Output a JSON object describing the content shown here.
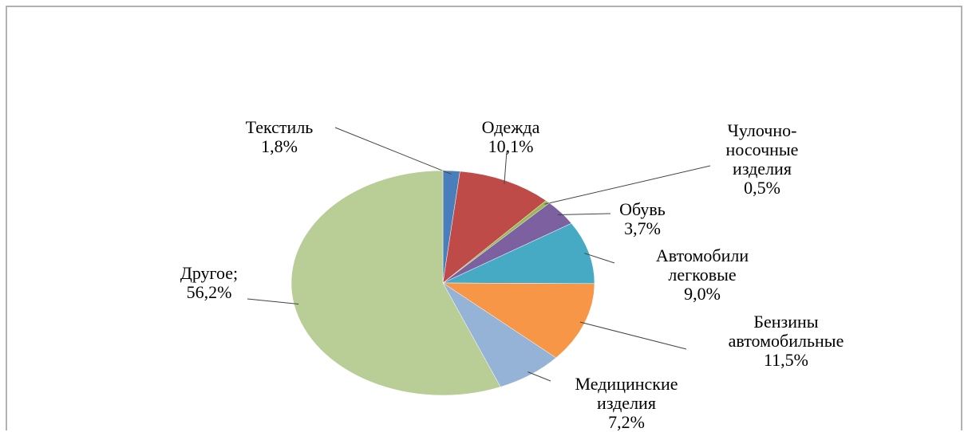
{
  "chart_data": {
    "type": "pie",
    "categories": [
      "Текстиль",
      "Одежда",
      "Чулочно-носочные изделия",
      "Обувь",
      "Автомобили легковые",
      "Бензины автомобильные",
      "Медицинские изделия",
      "Другое;"
    ],
    "values": [
      1.8,
      10.1,
      0.5,
      3.7,
      9.0,
      11.5,
      7.2,
      56.2
    ],
    "value_labels": [
      "1,8%",
      "10,1%",
      "0,5%",
      "3,7%",
      "9,0%",
      "11,5%",
      "7,2%",
      "56,2%"
    ],
    "colors": [
      "#4a7ebb",
      "#be4b48",
      "#98b954",
      "#7d60a0",
      "#46aac5",
      "#f79646",
      "#95b3d7",
      "#b9cd96"
    ]
  }
}
